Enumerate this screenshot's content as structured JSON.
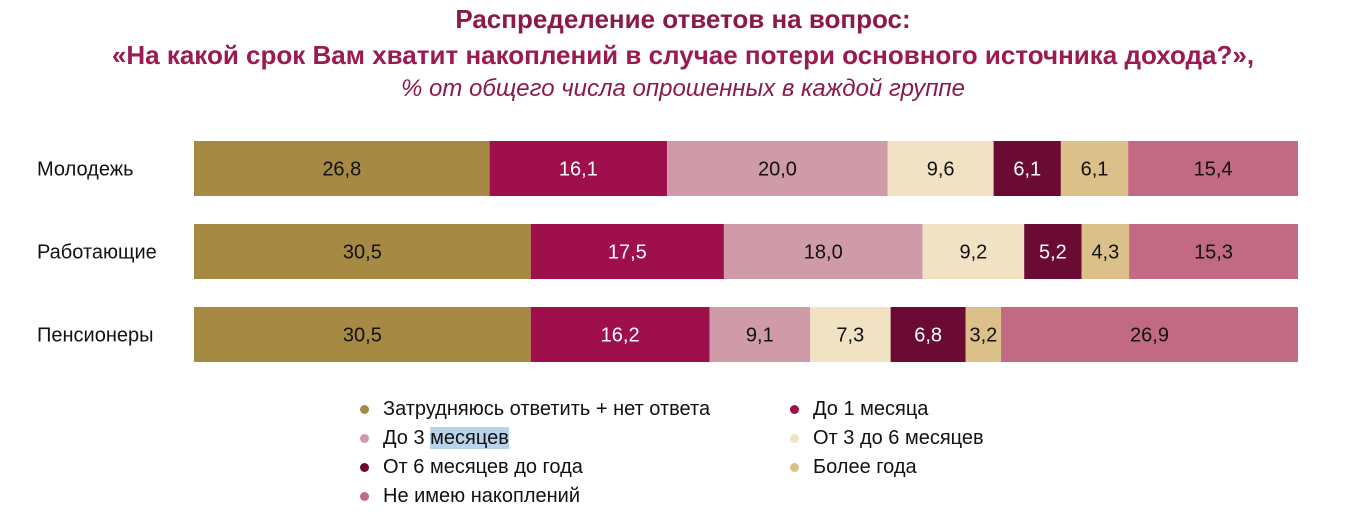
{
  "title_line_1": "Распределение ответов на вопрос:",
  "title_line_2": "«На какой срок Вам хватит накоплений в случае потери основного источника дохода?»,",
  "subtitle": "% от общего числа опрошенных в каждой группе",
  "chart_data": {
    "type": "bar",
    "orientation": "horizontal",
    "stacked": true,
    "categories": [
      "Молодежь",
      "Работающие",
      "Пенсионеры"
    ],
    "series": [
      {
        "name": "Затрудняюсь ответить + нет ответа",
        "color": "#a68a44",
        "label_color": "#111111",
        "values": [
          26.8,
          30.5,
          30.5
        ],
        "labels": [
          "26,8",
          "30,5",
          "30,5"
        ]
      },
      {
        "name": "До 1 месяца",
        "color": "#9e0f4c",
        "label_color": "#ffffff",
        "values": [
          16.1,
          17.5,
          16.2
        ],
        "labels": [
          "16,1",
          "17,5",
          "16,2"
        ]
      },
      {
        "name": "До 3 месяцев",
        "color": "#cf9ba8",
        "label_color": "#111111",
        "values": [
          20.0,
          18.0,
          9.1
        ],
        "labels": [
          "20,0",
          "18,0",
          "9,1"
        ]
      },
      {
        "name": "От 3 до 6 месяцев",
        "color": "#f1e2c4",
        "label_color": "#111111",
        "values": [
          9.6,
          9.2,
          7.3
        ],
        "labels": [
          "9,6",
          "9,2",
          "7,3"
        ]
      },
      {
        "name": "От 6 месяцев до года",
        "color": "#6b0a33",
        "label_color": "#ffffff",
        "values": [
          6.1,
          5.2,
          6.8
        ],
        "labels": [
          "6,1",
          "5,2",
          "6,8"
        ]
      },
      {
        "name": "Более года",
        "color": "#dcc08a",
        "label_color": "#111111",
        "values": [
          6.1,
          4.3,
          3.2
        ],
        "labels": [
          "6,1",
          "4,3",
          "3,2"
        ]
      },
      {
        "name": "Не имею накоплений",
        "color": "#c26a84",
        "label_color": "#111111",
        "values": [
          15.4,
          15.3,
          26.9
        ],
        "labels": [
          "15,4",
          "15,3",
          "26,9"
        ]
      }
    ],
    "legend": {
      "placement": "bottom",
      "columns": [
        [
          "Затрудняюсь ответить + нет ответа",
          "До 3 месяцев",
          "От 6 месяцев до года",
          "Не имею накоплений"
        ],
        [
          "До 1 месяца",
          "От 3 до 6 месяцев",
          "Более года"
        ]
      ],
      "highlighted_word": {
        "entry": "До 3 месяцев",
        "prefix": "До 3 ",
        "word": "месяцев"
      }
    },
    "grid": false
  }
}
